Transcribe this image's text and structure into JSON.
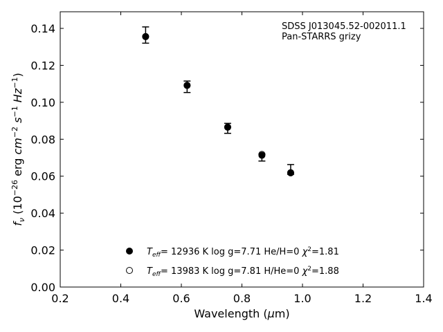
{
  "chart_data": {
    "type": "scatter",
    "title": "",
    "xlabel": "Wavelength (μm)",
    "ylabel": "fν (10⁻²⁶ erg cm⁻² s⁻¹ Hz⁻¹)",
    "xlim": [
      0.2,
      1.4
    ],
    "ylim": [
      0.0,
      0.149
    ],
    "x_ticks": [
      "0.2",
      "0.4",
      "0.6",
      "0.8",
      "1.0",
      "1.2",
      "1.4"
    ],
    "y_ticks": [
      "0.00",
      "0.02",
      "0.04",
      "0.06",
      "0.08",
      "0.10",
      "0.12",
      "0.14"
    ],
    "grid": false,
    "annotation": {
      "line1": "SDSS J013045.52-002011.1",
      "line2": "Pan-STARRS grizy"
    },
    "observed": {
      "x": [
        0.482,
        0.619,
        0.753,
        0.866,
        0.961
      ],
      "y": [
        0.1357,
        0.1093,
        0.0866,
        0.071,
        0.062
      ],
      "yerr_low": [
        0.0037,
        0.004,
        0.0034,
        0.0028,
        0.001
      ],
      "yerr_high": [
        0.0051,
        0.0022,
        0.002,
        0.001,
        0.0043
      ]
    },
    "series": [
      {
        "name": "Teff= 12936 K  log g=7.71  He/H=0  χ²=1.81",
        "marker": "filled-circle",
        "x": [
          0.482,
          0.619,
          0.753,
          0.866,
          0.961
        ],
        "y": [
          0.1356,
          0.1092,
          0.0865,
          0.0713,
          0.0618
        ]
      },
      {
        "name": "Teff= 13983 K  log g=7.81  H/He=0  χ²=1.88",
        "marker": "open-circle",
        "x": [
          0.482,
          0.619,
          0.753,
          0.866,
          0.961
        ],
        "y": [
          0.1355,
          0.1091,
          0.0866,
          0.0718,
          0.0619
        ]
      }
    ],
    "legend_placement": "lower-center",
    "colors": {
      "marker": "#000000",
      "axes": "#000000",
      "background": "#ffffff"
    }
  }
}
